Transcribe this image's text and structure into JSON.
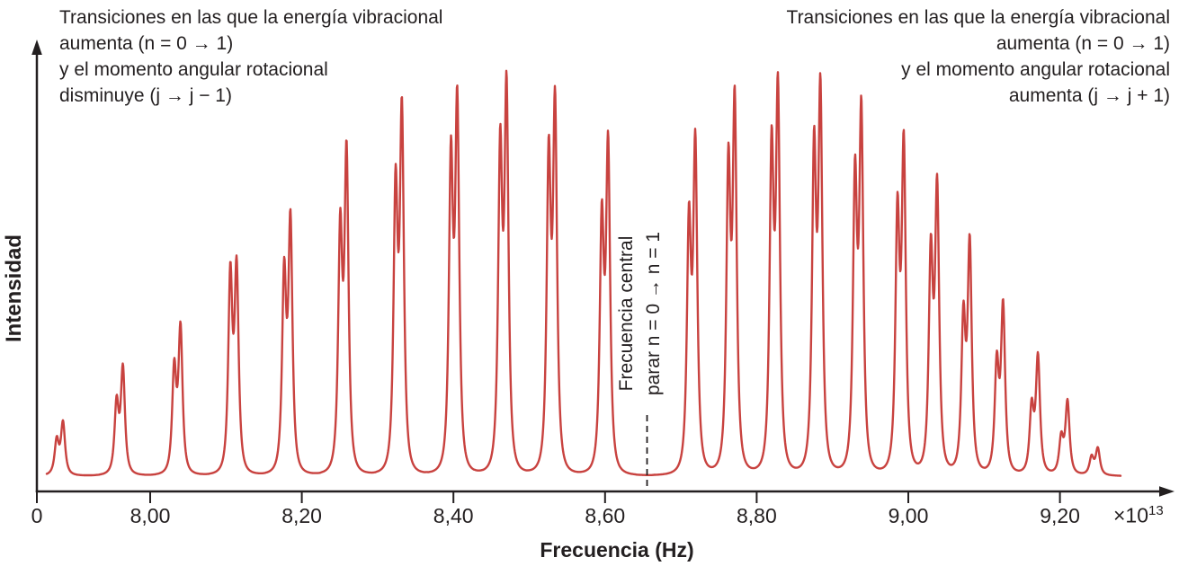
{
  "colors": {
    "curve": "#c8423f",
    "axis": "#231f20",
    "text": "#231f20"
  },
  "annotations": {
    "left": {
      "lines": [
        "Transiciones en las que la energía vibracional",
        "aumenta (n = 0 → 1)",
        "y el momento angular rotacional",
        "disminuye (j → j − 1)"
      ]
    },
    "right": {
      "lines": [
        "Transiciones en las que la energía vibracional",
        "aumenta (n = 0 → 1)",
        "y el momento angular rotacional",
        "aumenta (j → j + 1)"
      ]
    },
    "center": {
      "lines": [
        "Frecuencia central",
        "parar n = 0 → n = 1"
      ]
    }
  },
  "axes": {
    "y_label": "Intensidad",
    "x_label": "Frecuencia (Hz)",
    "x_scale": {
      "base": "×10",
      "exp": "13"
    },
    "x_ticks": [
      {
        "label": "0",
        "freq": 0
      },
      {
        "label": "8,00",
        "freq": 8.0
      },
      {
        "label": "8,20",
        "freq": 8.2
      },
      {
        "label": "8,40",
        "freq": 8.4
      },
      {
        "label": "8,60",
        "freq": 8.6
      },
      {
        "label": "8,80",
        "freq": 8.8
      },
      {
        "label": "9,00",
        "freq": 9.0
      },
      {
        "label": "9,20",
        "freq": 9.2
      }
    ]
  },
  "chart_data": {
    "type": "line",
    "xlabel": "Frecuencia (Hz)",
    "x_scale_factor": "×10^13",
    "ylabel": "Intensidad",
    "x_range": [
      7.8,
      9.35
    ],
    "grid": false,
    "center_frequency": 8.655,
    "center_frequency_label": "Frecuencia central parar n = 0 → n = 1",
    "left_branch_transition": "n = 0 → 1, j → j − 1",
    "right_branch_transition": "n = 0 → 1, j → j + 1",
    "isotope_doublet_offset": -0.008,
    "lines": [
      {
        "freq": 7.885,
        "intensity": 0.138,
        "isotope_ratio": 0.65
      },
      {
        "freq": 7.964,
        "intensity": 0.278,
        "isotope_ratio": 0.66
      },
      {
        "freq": 8.04,
        "intensity": 0.382,
        "isotope_ratio": 0.71
      },
      {
        "freq": 8.114,
        "intensity": 0.544,
        "isotope_ratio": 0.97
      },
      {
        "freq": 8.185,
        "intensity": 0.66,
        "isotope_ratio": 0.78
      },
      {
        "freq": 8.259,
        "intensity": 0.833,
        "isotope_ratio": 0.75
      },
      {
        "freq": 8.332,
        "intensity": 0.94,
        "isotope_ratio": 0.78
      },
      {
        "freq": 8.405,
        "intensity": 0.967,
        "isotope_ratio": 0.84
      },
      {
        "freq": 8.47,
        "intensity": 1.0,
        "isotope_ratio": 0.84
      },
      {
        "freq": 8.534,
        "intensity": 0.962,
        "isotope_ratio": 0.85
      },
      {
        "freq": 8.604,
        "intensity": 0.853,
        "isotope_ratio": 0.76
      },
      {
        "freq": 8.719,
        "intensity": 0.856,
        "isotope_ratio": 0.75
      },
      {
        "freq": 8.771,
        "intensity": 0.964,
        "isotope_ratio": 0.82
      },
      {
        "freq": 8.828,
        "intensity": 0.996,
        "isotope_ratio": 0.84
      },
      {
        "freq": 8.884,
        "intensity": 0.993,
        "isotope_ratio": 0.84
      },
      {
        "freq": 8.938,
        "intensity": 0.938,
        "isotope_ratio": 0.81
      },
      {
        "freq": 8.994,
        "intensity": 0.853,
        "isotope_ratio": 0.78
      },
      {
        "freq": 9.038,
        "intensity": 0.742,
        "isotope_ratio": 0.76
      },
      {
        "freq": 9.081,
        "intensity": 0.596,
        "isotope_ratio": 0.66
      },
      {
        "freq": 9.125,
        "intensity": 0.436,
        "isotope_ratio": 0.64
      },
      {
        "freq": 9.171,
        "intensity": 0.304,
        "isotope_ratio": 0.55
      },
      {
        "freq": 9.21,
        "intensity": 0.189,
        "isotope_ratio": 0.48
      },
      {
        "freq": 9.25,
        "intensity": 0.071,
        "isotope_ratio": 0.65
      }
    ]
  }
}
